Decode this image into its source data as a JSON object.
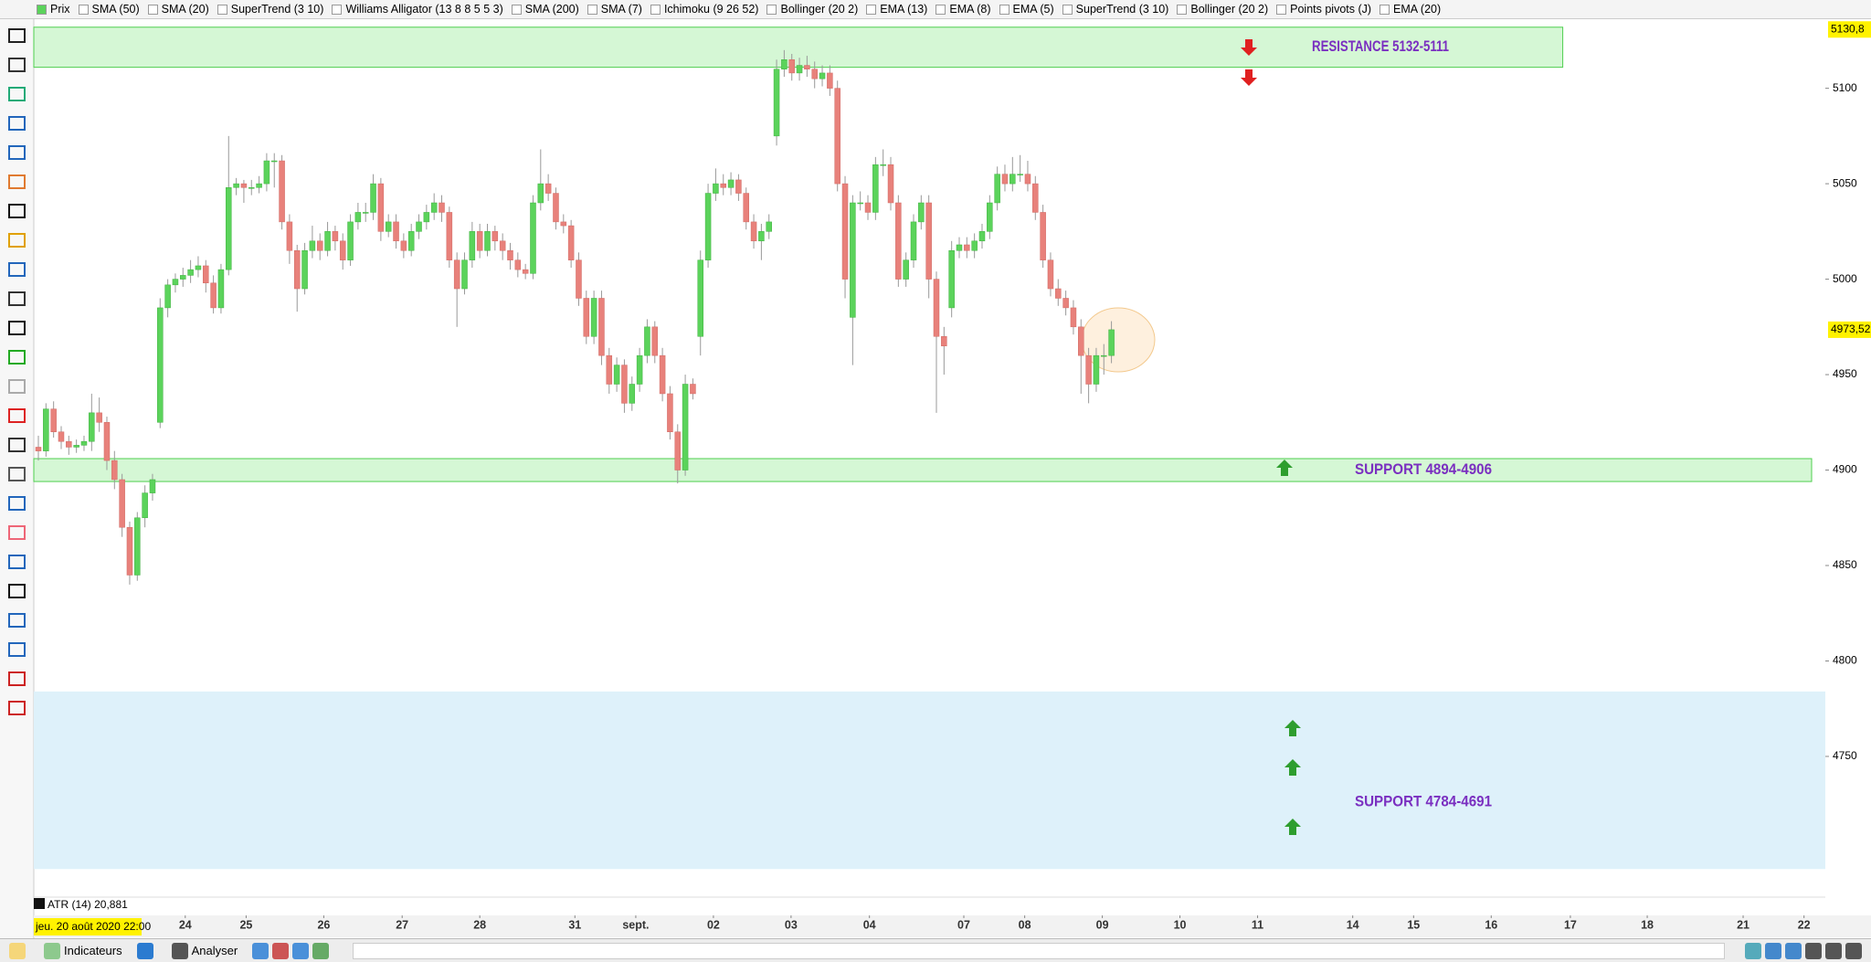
{
  "toolbar": {
    "items": [
      "Prix",
      "SMA (50)",
      "SMA (20)",
      "SuperTrend (3 10)",
      "Williams Alligator (13 8 8 5 5 3)",
      "SMA (200)",
      "SMA (7)",
      "Ichimoku (9 26 52)",
      "Bollinger (20 2)",
      "EMA (13)",
      "EMA (8)",
      "EMA (5)",
      "SuperTrend (3 10)",
      "Bollinger (20 2)",
      "Points pivots (J)",
      "EMA (20)"
    ]
  },
  "chart_data": {
    "type": "candlestick",
    "up_color": "#5bd35b",
    "down_color": "#e8817b",
    "ylim": [
      4676,
      5136
    ],
    "yticks": [
      5100,
      5050,
      5000,
      4950,
      4900,
      4850,
      4800,
      4750
    ],
    "price_labels": [
      {
        "value": 5130.8,
        "label": "5130,8"
      },
      {
        "value": 4973.52,
        "label": "4973,52"
      }
    ],
    "xlim": [
      -0.6,
      234.8
    ],
    "xticks": [
      {
        "value": 19.3,
        "label": "24"
      },
      {
        "value": 27.3,
        "label": "25"
      },
      {
        "value": 37.5,
        "label": "26"
      },
      {
        "value": 47.8,
        "label": "27"
      },
      {
        "value": 58,
        "label": "28"
      },
      {
        "value": 70.5,
        "label": "31"
      },
      {
        "value": 78.5,
        "label": "sept."
      },
      {
        "value": 88.7,
        "label": "02"
      },
      {
        "value": 98.9,
        "label": "03"
      },
      {
        "value": 109.2,
        "label": "04"
      },
      {
        "value": 121.6,
        "label": "07"
      },
      {
        "value": 129.6,
        "label": "08"
      },
      {
        "value": 139.8,
        "label": "09"
      },
      {
        "value": 150,
        "label": "10"
      },
      {
        "value": 160.2,
        "label": "11"
      },
      {
        "value": 172.7,
        "label": "14"
      },
      {
        "value": 180.7,
        "label": "15"
      },
      {
        "value": 190.9,
        "label": "16"
      },
      {
        "value": 201.3,
        "label": "17"
      },
      {
        "value": 211.4,
        "label": "18"
      },
      {
        "value": 224,
        "label": "21"
      },
      {
        "value": 232,
        "label": "22"
      }
    ],
    "start_label": "jeu. 20 août 2020 22:00",
    "indicator_label": "ATR (14) 20,881",
    "zones": [
      {
        "label": "RESISTANCE 5132-5111",
        "low": 5111,
        "high": 5132,
        "end": 200.3,
        "color": "#d5f7d5"
      },
      {
        "label": "SUPPORT 4894-4906",
        "low": 4894,
        "high": 4906,
        "end": 233,
        "color": "#d5f7d5"
      },
      {
        "label": "SUPPORT 4784-4691",
        "low": 4691,
        "high": 4784,
        "end": 234.8,
        "color": "#def1fa"
      }
    ],
    "ohlc": [
      [
        4912,
        4918,
        4905,
        4910
      ],
      [
        4910,
        4935,
        4907,
        4932
      ],
      [
        4932,
        4936,
        4917,
        4920
      ],
      [
        4920,
        4923,
        4911,
        4915
      ],
      [
        4915,
        4918,
        4908,
        4912
      ],
      [
        4912,
        4916,
        4909,
        4913
      ],
      [
        4913,
        4918,
        4910,
        4915
      ],
      [
        4915,
        4940,
        4910,
        4930
      ],
      [
        4930,
        4938,
        4920,
        4925
      ],
      [
        4925,
        4928,
        4900,
        4905
      ],
      [
        4905,
        4910,
        4890,
        4895
      ],
      [
        4895,
        4898,
        4865,
        4870
      ],
      [
        4870,
        4873,
        4840,
        4845
      ],
      [
        4845,
        4878,
        4842,
        4875
      ],
      [
        4875,
        4892,
        4870,
        4888
      ],
      [
        4888,
        4898,
        4884,
        4895
      ],
      [
        4925,
        4990,
        4922,
        4985
      ],
      [
        4985,
        5000,
        4980,
        4997
      ],
      [
        4997,
        5003,
        4993,
        5000
      ],
      [
        5000,
        5006,
        4996,
        5002
      ],
      [
        5002,
        5010,
        4998,
        5005
      ],
      [
        5005,
        5012,
        5001,
        5007
      ],
      [
        5007,
        5010,
        4993,
        4998
      ],
      [
        4998,
        5002,
        4982,
        4985
      ],
      [
        4985,
        5008,
        4982,
        5005
      ],
      [
        5005,
        5075,
        5002,
        5048
      ],
      [
        5048,
        5053,
        5044,
        5050
      ],
      [
        5050,
        5052,
        5040,
        5048
      ],
      [
        5048,
        5052,
        5044,
        5048
      ],
      [
        5048,
        5054,
        5045,
        5050
      ],
      [
        5050,
        5066,
        5046,
        5062
      ],
      [
        5062,
        5066,
        5048,
        5062
      ],
      [
        5062,
        5065,
        5026,
        5030
      ],
      [
        5030,
        5034,
        5008,
        5015
      ],
      [
        5015,
        5018,
        4983,
        4995
      ],
      [
        4995,
        5019,
        4992,
        5015
      ],
      [
        5015,
        5028,
        5011,
        5020
      ],
      [
        5020,
        5024,
        5010,
        5015
      ],
      [
        5015,
        5030,
        5012,
        5025
      ],
      [
        5025,
        5028,
        5015,
        5020
      ],
      [
        5020,
        5024,
        5005,
        5010
      ],
      [
        5010,
        5034,
        5007,
        5030
      ],
      [
        5030,
        5040,
        5026,
        5035
      ],
      [
        5035,
        5040,
        5030,
        5035
      ],
      [
        5035,
        5055,
        5031,
        5050
      ],
      [
        5050,
        5053,
        5020,
        5025
      ],
      [
        5025,
        5034,
        5022,
        5030
      ],
      [
        5030,
        5034,
        5016,
        5020
      ],
      [
        5020,
        5024,
        5011,
        5015
      ],
      [
        5015,
        5029,
        5012,
        5025
      ],
      [
        5025,
        5034,
        5021,
        5030
      ],
      [
        5030,
        5039,
        5026,
        5035
      ],
      [
        5035,
        5045,
        5031,
        5040
      ],
      [
        5040,
        5044,
        5030,
        5035
      ],
      [
        5035,
        5038,
        5006,
        5010
      ],
      [
        5010,
        5014,
        4975,
        4995
      ],
      [
        4995,
        5014,
        4992,
        5010
      ],
      [
        5010,
        5030,
        5006,
        5025
      ],
      [
        5025,
        5029,
        5011,
        5015
      ],
      [
        5015,
        5029,
        5012,
        5025
      ],
      [
        5025,
        5028,
        5015,
        5020
      ],
      [
        5020,
        5024,
        5010,
        5015
      ],
      [
        5015,
        5019,
        5005,
        5010
      ],
      [
        5010,
        5014,
        5001,
        5005
      ],
      [
        5005,
        5008,
        5000,
        5003
      ],
      [
        5003,
        5044,
        5000,
        5040
      ],
      [
        5040,
        5068,
        5036,
        5050
      ],
      [
        5050,
        5055,
        5041,
        5045
      ],
      [
        5045,
        5048,
        5026,
        5030
      ],
      [
        5030,
        5034,
        5024,
        5028
      ],
      [
        5028,
        5031,
        5006,
        5010
      ],
      [
        5010,
        5014,
        4986,
        4990
      ],
      [
        4990,
        4994,
        4966,
        4970
      ],
      [
        4970,
        4994,
        4966,
        4990
      ],
      [
        4990,
        4994,
        4955,
        4960
      ],
      [
        4960,
        4964,
        4940,
        4945
      ],
      [
        4945,
        4959,
        4941,
        4955
      ],
      [
        4955,
        4958,
        4930,
        4935
      ],
      [
        4935,
        4949,
        4931,
        4945
      ],
      [
        4945,
        4964,
        4941,
        4960
      ],
      [
        4960,
        4979,
        4956,
        4975
      ],
      [
        4975,
        4978,
        4956,
        4960
      ],
      [
        4960,
        4964,
        4936,
        4940
      ],
      [
        4940,
        4944,
        4916,
        4920
      ],
      [
        4920,
        4924,
        4893,
        4900
      ],
      [
        4900,
        4950,
        4897,
        4945
      ],
      [
        4945,
        4948,
        4937,
        4940
      ],
      [
        4970,
        5015,
        4960,
        5010
      ],
      [
        5010,
        5050,
        5006,
        5045
      ],
      [
        5045,
        5058,
        5041,
        5050
      ],
      [
        5050,
        5055,
        5044,
        5048
      ],
      [
        5048,
        5056,
        5044,
        5052
      ],
      [
        5052,
        5055,
        5041,
        5045
      ],
      [
        5045,
        5048,
        5026,
        5030
      ],
      [
        5030,
        5034,
        5016,
        5020
      ],
      [
        5020,
        5029,
        5010,
        5025
      ],
      [
        5025,
        5034,
        5021,
        5030
      ],
      [
        5075,
        5115,
        5070,
        5110
      ],
      [
        5110,
        5120,
        5106,
        5115
      ],
      [
        5115,
        5118,
        5104,
        5108
      ],
      [
        5108,
        5116,
        5104,
        5112
      ],
      [
        5112,
        5117,
        5106,
        5110
      ],
      [
        5110,
        5114,
        5100,
        5105
      ],
      [
        5105,
        5112,
        5101,
        5108
      ],
      [
        5108,
        5112,
        5096,
        5100
      ],
      [
        5100,
        5104,
        5046,
        5050
      ],
      [
        5050,
        5054,
        4990,
        5000
      ],
      [
        4980,
        5044,
        4955,
        5040
      ],
      [
        5040,
        5046,
        5036,
        5040
      ],
      [
        5040,
        5044,
        5031,
        5035
      ],
      [
        5035,
        5064,
        5031,
        5060
      ],
      [
        5060,
        5068,
        5054,
        5060
      ],
      [
        5060,
        5064,
        5036,
        5040
      ],
      [
        5040,
        5044,
        4996,
        5000
      ],
      [
        5000,
        5014,
        4996,
        5010
      ],
      [
        5010,
        5034,
        5006,
        5030
      ],
      [
        5030,
        5044,
        5026,
        5040
      ],
      [
        5040,
        5044,
        4990,
        5000
      ],
      [
        5000,
        5004,
        4930,
        4970
      ],
      [
        4970,
        4975,
        4950,
        4965
      ],
      [
        4985,
        5020,
        4980,
        5015
      ],
      [
        5015,
        5022,
        5011,
        5018
      ],
      [
        5018,
        5022,
        5011,
        5015
      ],
      [
        5015,
        5024,
        5011,
        5020
      ],
      [
        5020,
        5029,
        5016,
        5025
      ],
      [
        5025,
        5044,
        5021,
        5040
      ],
      [
        5040,
        5059,
        5036,
        5055
      ],
      [
        5055,
        5060,
        5046,
        5050
      ],
      [
        5050,
        5064,
        5046,
        5055
      ],
      [
        5055,
        5065,
        5051,
        5055
      ],
      [
        5055,
        5062,
        5046,
        5050
      ],
      [
        5050,
        5054,
        5031,
        5035
      ],
      [
        5035,
        5039,
        5006,
        5010
      ],
      [
        5010,
        5014,
        4991,
        4995
      ],
      [
        4995,
        5000,
        4986,
        4990
      ],
      [
        4990,
        4994,
        4981,
        4985
      ],
      [
        4985,
        4989,
        4971,
        4975
      ],
      [
        4975,
        4979,
        4940,
        4960
      ],
      [
        4960,
        4964,
        4935,
        4945
      ],
      [
        4945,
        4964,
        4941,
        4960
      ],
      [
        4960,
        4966,
        4950,
        4960
      ],
      [
        4960,
        4978,
        4956,
        4973.52
      ]
    ]
  },
  "bottom_toolbar": {
    "indicators": "Indicateurs",
    "analyse": "Analyser"
  }
}
